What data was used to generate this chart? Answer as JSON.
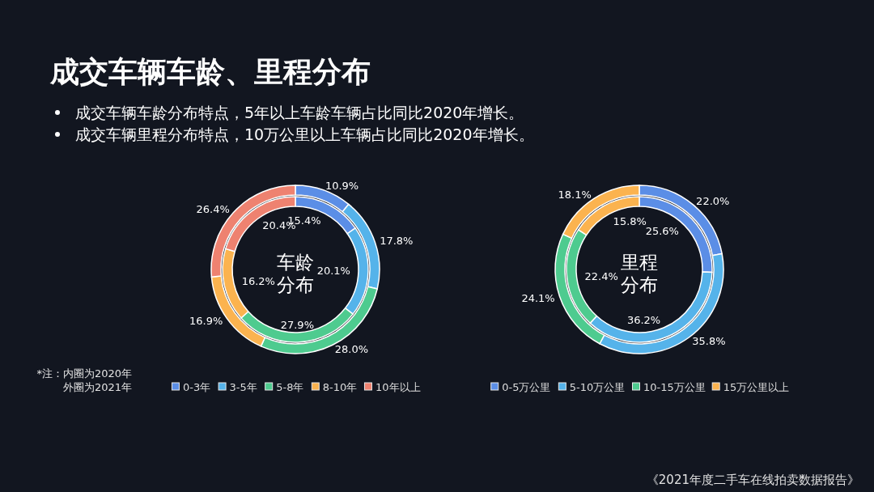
{
  "chart_data": [
    {
      "type": "other",
      "title": "成交车辆车龄、里程分布",
      "annotations": [
        "成交车辆车龄分布特点，5年以上车龄车辆占比同比2020年增长。",
        "成交车辆里程分布特点，10万公里以上车辆占比同比2020年增长。",
        "《2021年度二手车在线拍卖数据报告》"
      ]
    },
    {
      "type": "donut",
      "title": "车龄分布",
      "categories": [
        "0-3年",
        "3-5年",
        "5-8年",
        "8-10年",
        "10年以上"
      ],
      "colors": [
        "#5b8ee6",
        "#55b3ea",
        "#4ecb8f",
        "#fbb34f",
        "#ee8270"
      ],
      "series": [
        {
          "values": [
            15.4,
            20.1,
            27.9,
            16.2,
            20.4
          ],
          "value_labels": [
            "15.4%",
            "20.1%",
            "27.9%",
            "16.2%",
            "20.4%"
          ]
        },
        {
          "values": [
            10.9,
            17.8,
            28.0,
            16.9,
            26.4
          ],
          "value_labels": [
            "10.9%",
            "17.8%",
            "28.0%",
            "16.9%",
            "26.4%"
          ]
        }
      ],
      "legend": "bottom",
      "annotations": [
        "*注：内圈为2020年外圈为2021年"
      ]
    },
    {
      "type": "donut",
      "title": "里程分布",
      "categories": [
        "0-5万公里",
        "5-10万公里",
        "10-15万公里",
        "15万公里以上"
      ],
      "colors": [
        "#5b8ee6",
        "#55b3ea",
        "#4ecb8f",
        "#fbb34f"
      ],
      "series": [
        {
          "values": [
            25.6,
            36.2,
            22.4,
            15.8
          ],
          "value_labels": [
            "25.6%",
            "36.2%",
            "22.4%",
            "15.8%"
          ]
        },
        {
          "values": [
            22.0,
            35.8,
            24.1,
            18.1
          ],
          "value_labels": [
            "22.0%",
            "35.8%",
            "24.1%",
            "18.1%"
          ]
        }
      ],
      "legend": "bottom"
    }
  ]
}
